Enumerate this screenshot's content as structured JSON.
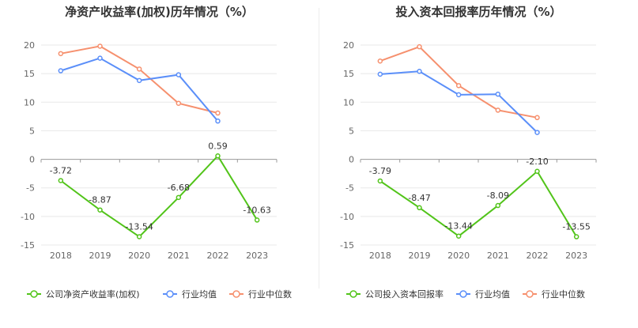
{
  "colors": {
    "company": "#52c41a",
    "industry_avg": "#5b8ff9",
    "industry_median": "#f6906e",
    "grid": "#e8e8e8",
    "axis": "#999999"
  },
  "chart_data": [
    {
      "type": "line",
      "title": "净资产收益率(加权)历年情况（%）",
      "categories": [
        "2018",
        "2019",
        "2020",
        "2021",
        "2022",
        "2023"
      ],
      "ylim": [
        -15,
        20
      ],
      "yticks": [
        20,
        15,
        10,
        5,
        0,
        -5,
        -10,
        -15
      ],
      "grid": true,
      "legend_position": "bottom-left",
      "series": [
        {
          "name": "公司净资产收益率(加权)",
          "key": "company",
          "values": [
            -3.72,
            -8.87,
            -13.54,
            -6.68,
            0.59,
            -10.63
          ],
          "labels": [
            "-3.72",
            "-8.87",
            "-13.54",
            "-6.68",
            "0.59",
            "-10.63"
          ]
        },
        {
          "name": "行业均值",
          "key": "industry_avg",
          "values": [
            15.5,
            17.7,
            13.8,
            14.8,
            6.7,
            null
          ]
        },
        {
          "name": "行业中位数",
          "key": "industry_median",
          "values": [
            18.5,
            19.8,
            15.8,
            9.8,
            8.1,
            null
          ]
        }
      ]
    },
    {
      "type": "line",
      "title": "投入资本回报率历年情况（%）",
      "categories": [
        "2018",
        "2019",
        "2020",
        "2021",
        "2022",
        "2023"
      ],
      "ylim": [
        -15,
        20
      ],
      "yticks": [
        20,
        15,
        10,
        5,
        0,
        -5,
        -10,
        -15
      ],
      "grid": true,
      "legend_position": "bottom-left",
      "series": [
        {
          "name": "公司投入资本回报率",
          "key": "company",
          "values": [
            -3.79,
            -8.47,
            -13.44,
            -8.09,
            -2.1,
            -13.55
          ],
          "labels": [
            "-3.79",
            "-8.47",
            "-13.44",
            "-8.09",
            "-2.10",
            "-13.55"
          ]
        },
        {
          "name": "行业均值",
          "key": "industry_avg",
          "values": [
            14.9,
            15.4,
            11.3,
            11.4,
            4.7,
            null
          ]
        },
        {
          "name": "行业中位数",
          "key": "industry_median",
          "values": [
            17.2,
            19.7,
            12.9,
            8.6,
            7.3,
            null
          ]
        }
      ]
    }
  ]
}
